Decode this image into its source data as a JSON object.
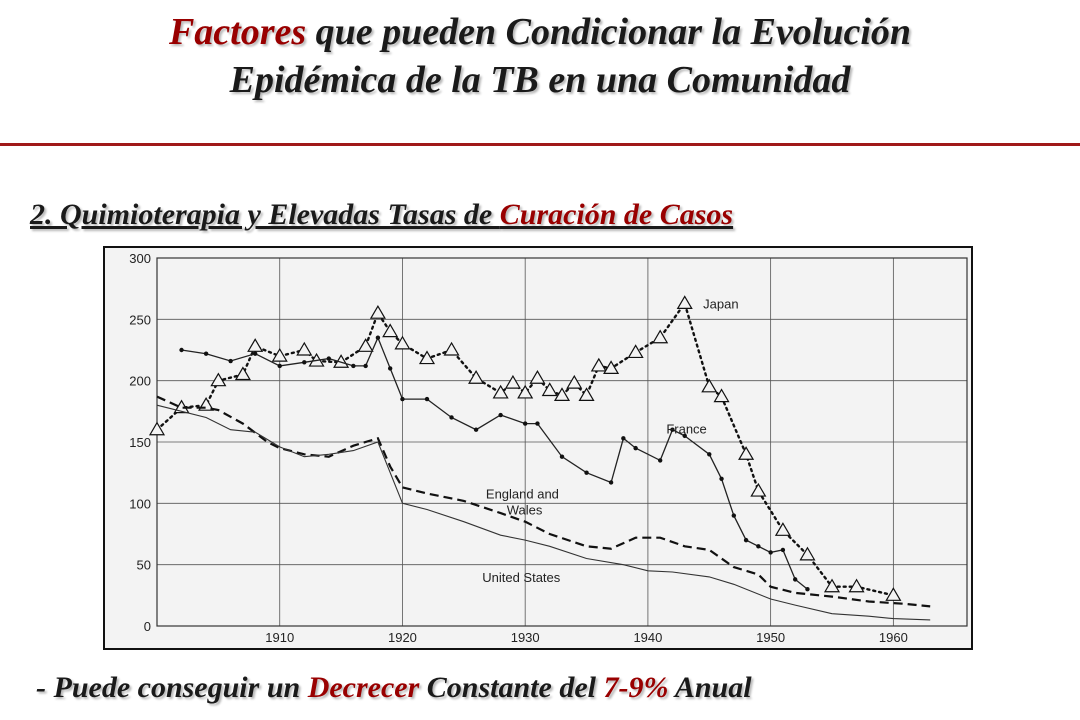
{
  "slide": {
    "title_word1": "Factores",
    "title_rest_line1": " que pueden Condicionar la Evolución",
    "title_line2": "Epidémica de la TB en una Comunidad",
    "subtitle_prefix": "2. Quimioterapia y Elevadas Tasas de ",
    "subtitle_highlight": "Curación de Casos",
    "footer_prefix": "- Puede conseguir un ",
    "footer_highlight1": "Decrecer",
    "footer_middle": " Constante del ",
    "footer_highlight2": "7-9%",
    "footer_suffix": " Anual",
    "accent_color": "#990000",
    "rule_color": "#a01818"
  },
  "chart_data": {
    "type": "line",
    "xlim": [
      1900,
      1966
    ],
    "ylim": [
      0,
      300
    ],
    "x_ticks": [
      1910,
      1920,
      1930,
      1940,
      1950,
      1960
    ],
    "y_ticks": [
      0,
      50,
      100,
      150,
      200,
      250,
      300
    ],
    "grid": true,
    "series": [
      {
        "name": "Japan",
        "style": "dotted-triangles",
        "points": [
          [
            1900,
            160
          ],
          [
            1902,
            178
          ],
          [
            1904,
            180
          ],
          [
            1905,
            200
          ],
          [
            1907,
            205
          ],
          [
            1908,
            228
          ],
          [
            1910,
            220
          ],
          [
            1912,
            225
          ],
          [
            1913,
            216
          ],
          [
            1915,
            215
          ],
          [
            1917,
            228
          ],
          [
            1918,
            255
          ],
          [
            1919,
            240
          ],
          [
            1920,
            230
          ],
          [
            1922,
            218
          ],
          [
            1924,
            225
          ],
          [
            1926,
            202
          ],
          [
            1928,
            190
          ],
          [
            1929,
            198
          ],
          [
            1930,
            190
          ],
          [
            1931,
            202
          ],
          [
            1932,
            192
          ],
          [
            1933,
            188
          ],
          [
            1934,
            198
          ],
          [
            1935,
            188
          ],
          [
            1936,
            212
          ],
          [
            1937,
            210
          ],
          [
            1939,
            223
          ],
          [
            1941,
            235
          ],
          [
            1943,
            263
          ],
          [
            1945,
            195
          ],
          [
            1946,
            187
          ],
          [
            1948,
            140
          ],
          [
            1949,
            110
          ],
          [
            1951,
            78
          ],
          [
            1953,
            58
          ],
          [
            1955,
            32
          ],
          [
            1957,
            32
          ],
          [
            1960,
            25
          ]
        ]
      },
      {
        "name": "France",
        "style": "solid-dots",
        "points": [
          [
            1902,
            225
          ],
          [
            1904,
            222
          ],
          [
            1906,
            216
          ],
          [
            1908,
            222
          ],
          [
            1910,
            212
          ],
          [
            1912,
            215
          ],
          [
            1914,
            218
          ],
          [
            1916,
            212
          ],
          [
            1917,
            212
          ],
          [
            1918,
            235
          ],
          [
            1919,
            210
          ],
          [
            1920,
            185
          ],
          [
            1922,
            185
          ],
          [
            1924,
            170
          ],
          [
            1926,
            160
          ],
          [
            1928,
            172
          ],
          [
            1930,
            165
          ],
          [
            1931,
            165
          ],
          [
            1933,
            138
          ],
          [
            1935,
            125
          ],
          [
            1937,
            117
          ],
          [
            1938,
            153
          ],
          [
            1939,
            145
          ],
          [
            1941,
            135
          ],
          [
            1942,
            160
          ],
          [
            1943,
            155
          ],
          [
            1945,
            140
          ],
          [
            1946,
            120
          ],
          [
            1947,
            90
          ],
          [
            1948,
            70
          ],
          [
            1949,
            65
          ],
          [
            1950,
            60
          ],
          [
            1951,
            62
          ],
          [
            1952,
            38
          ],
          [
            1953,
            30
          ]
        ]
      },
      {
        "name": "England and Wales",
        "style": "dashed",
        "points": [
          [
            1900,
            187
          ],
          [
            1902,
            178
          ],
          [
            1904,
            178
          ],
          [
            1905,
            176
          ],
          [
            1907,
            165
          ],
          [
            1909,
            150
          ],
          [
            1910,
            145
          ],
          [
            1912,
            140
          ],
          [
            1914,
            138
          ],
          [
            1916,
            147
          ],
          [
            1918,
            153
          ],
          [
            1919,
            130
          ],
          [
            1920,
            113
          ],
          [
            1922,
            108
          ],
          [
            1925,
            102
          ],
          [
            1928,
            92
          ],
          [
            1930,
            85
          ],
          [
            1932,
            75
          ],
          [
            1935,
            65
          ],
          [
            1937,
            63
          ],
          [
            1939,
            72
          ],
          [
            1941,
            72
          ],
          [
            1943,
            65
          ],
          [
            1945,
            62
          ],
          [
            1947,
            48
          ],
          [
            1949,
            42
          ],
          [
            1950,
            32
          ],
          [
            1952,
            27
          ],
          [
            1955,
            24
          ],
          [
            1958,
            20
          ],
          [
            1961,
            18
          ],
          [
            1963,
            16
          ]
        ]
      },
      {
        "name": "United States",
        "style": "solid-thin",
        "points": [
          [
            1900,
            180
          ],
          [
            1902,
            175
          ],
          [
            1904,
            170
          ],
          [
            1906,
            160
          ],
          [
            1908,
            158
          ],
          [
            1910,
            146
          ],
          [
            1912,
            138
          ],
          [
            1914,
            140
          ],
          [
            1916,
            143
          ],
          [
            1918,
            150
          ],
          [
            1920,
            100
          ],
          [
            1922,
            95
          ],
          [
            1925,
            85
          ],
          [
            1928,
            74
          ],
          [
            1930,
            70
          ],
          [
            1932,
            65
          ],
          [
            1935,
            55
          ],
          [
            1938,
            50
          ],
          [
            1940,
            45
          ],
          [
            1942,
            44
          ],
          [
            1945,
            40
          ],
          [
            1947,
            34
          ],
          [
            1950,
            22
          ],
          [
            1952,
            17
          ],
          [
            1955,
            10
          ],
          [
            1958,
            8
          ],
          [
            1960,
            6
          ],
          [
            1963,
            5
          ]
        ]
      }
    ]
  }
}
